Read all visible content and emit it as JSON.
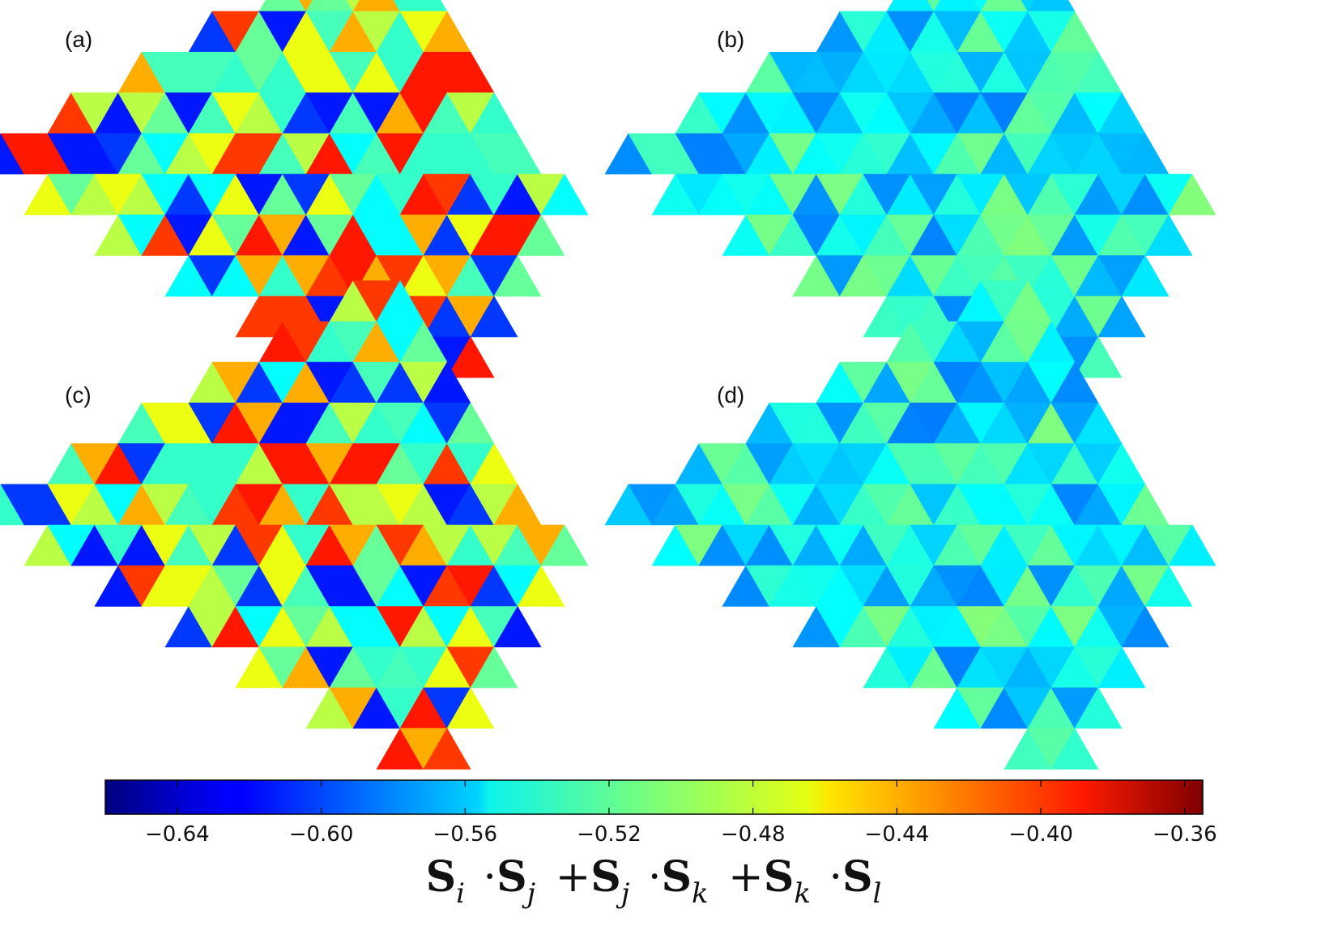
{
  "chart_data": {
    "type": "heatmap",
    "lattice": "kagome triangular-plaquette map (rhombic cluster)",
    "panels": [
      {
        "label": "(a)",
        "pattern": "strongly_modulated",
        "variant": 0
      },
      {
        "label": "(b)",
        "pattern": "nearly_uniform",
        "variant": 0
      },
      {
        "label": "(c)",
        "pattern": "strongly_modulated",
        "variant": 1
      },
      {
        "label": "(d)",
        "pattern": "nearly_uniform",
        "variant": 1
      }
    ],
    "colorbar": {
      "colormap": "jet",
      "vmin": -0.66,
      "vmax": -0.355,
      "ticks": [
        -0.64,
        -0.6,
        -0.56,
        -0.52,
        -0.48,
        -0.44,
        -0.4,
        -0.36
      ],
      "tick_labels": [
        "−0.64",
        "−0.60",
        "−0.56",
        "−0.52",
        "−0.48",
        "−0.44",
        "−0.40",
        "−0.36"
      ],
      "label": "S_i ·S_j +S_j ·S_k +S_k ·S_l"
    }
  }
}
